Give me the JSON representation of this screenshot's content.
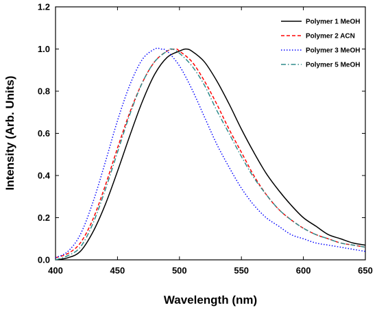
{
  "chart_data": {
    "type": "line",
    "title": "",
    "xlabel": "Wavelength (nm)",
    "ylabel": "Intensity (Arb. Units)",
    "xlim": [
      400,
      650
    ],
    "ylim": [
      0.0,
      1.2
    ],
    "xticks": [
      400,
      450,
      500,
      550,
      600,
      650
    ],
    "yticks": [
      0.0,
      0.2,
      0.4,
      0.6,
      0.8,
      1.0,
      1.2
    ],
    "grid": false,
    "legend_position": "top-right",
    "series": [
      {
        "name": "Polymer 1 MeOH",
        "color": "#000000",
        "style": "solid",
        "x": [
          400,
          410,
          420,
          430,
          440,
          450,
          460,
          470,
          480,
          490,
          500,
          505,
          510,
          520,
          530,
          540,
          550,
          560,
          570,
          580,
          590,
          600,
          610,
          620,
          630,
          640,
          650
        ],
        "y": [
          0.0,
          0.01,
          0.04,
          0.13,
          0.26,
          0.42,
          0.59,
          0.75,
          0.88,
          0.96,
          0.99,
          1.0,
          0.99,
          0.94,
          0.85,
          0.74,
          0.62,
          0.51,
          0.41,
          0.33,
          0.26,
          0.2,
          0.16,
          0.12,
          0.1,
          0.08,
          0.07
        ]
      },
      {
        "name": "Polymer 2 ACN",
        "color": "#ff0000",
        "style": "dashed",
        "x": [
          400,
          410,
          420,
          430,
          440,
          450,
          460,
          470,
          480,
          490,
          497,
          500,
          510,
          520,
          530,
          540,
          550,
          560,
          570,
          580,
          590,
          600,
          610,
          620,
          630,
          640,
          650
        ],
        "y": [
          0.01,
          0.03,
          0.08,
          0.19,
          0.35,
          0.53,
          0.7,
          0.84,
          0.94,
          0.99,
          1.0,
          0.99,
          0.94,
          0.85,
          0.74,
          0.62,
          0.51,
          0.4,
          0.31,
          0.24,
          0.19,
          0.15,
          0.12,
          0.1,
          0.08,
          0.07,
          0.06
        ]
      },
      {
        "name": "Polymer 3 MeOH",
        "color": "#0000ff",
        "style": "dotted",
        "x": [
          400,
          410,
          420,
          430,
          440,
          450,
          460,
          470,
          480,
          485,
          490,
          500,
          510,
          520,
          530,
          540,
          550,
          560,
          570,
          580,
          590,
          600,
          610,
          620,
          630,
          640,
          650
        ],
        "y": [
          0.01,
          0.04,
          0.12,
          0.27,
          0.46,
          0.66,
          0.83,
          0.95,
          1.0,
          1.0,
          0.99,
          0.92,
          0.81,
          0.68,
          0.55,
          0.44,
          0.34,
          0.26,
          0.2,
          0.16,
          0.12,
          0.1,
          0.08,
          0.07,
          0.06,
          0.05,
          0.04
        ]
      },
      {
        "name": "Polymer 5 MeOH",
        "color": "#2e8b8b",
        "style": "dashdot",
        "x": [
          400,
          410,
          420,
          430,
          440,
          450,
          460,
          470,
          480,
          490,
          494,
          500,
          510,
          520,
          530,
          540,
          550,
          560,
          570,
          580,
          590,
          600,
          610,
          620,
          630,
          640,
          650
        ],
        "y": [
          0.0,
          0.02,
          0.06,
          0.17,
          0.33,
          0.51,
          0.69,
          0.84,
          0.94,
          0.99,
          1.0,
          0.98,
          0.92,
          0.83,
          0.71,
          0.6,
          0.49,
          0.39,
          0.31,
          0.24,
          0.19,
          0.15,
          0.12,
          0.1,
          0.08,
          0.07,
          0.06
        ]
      }
    ]
  }
}
